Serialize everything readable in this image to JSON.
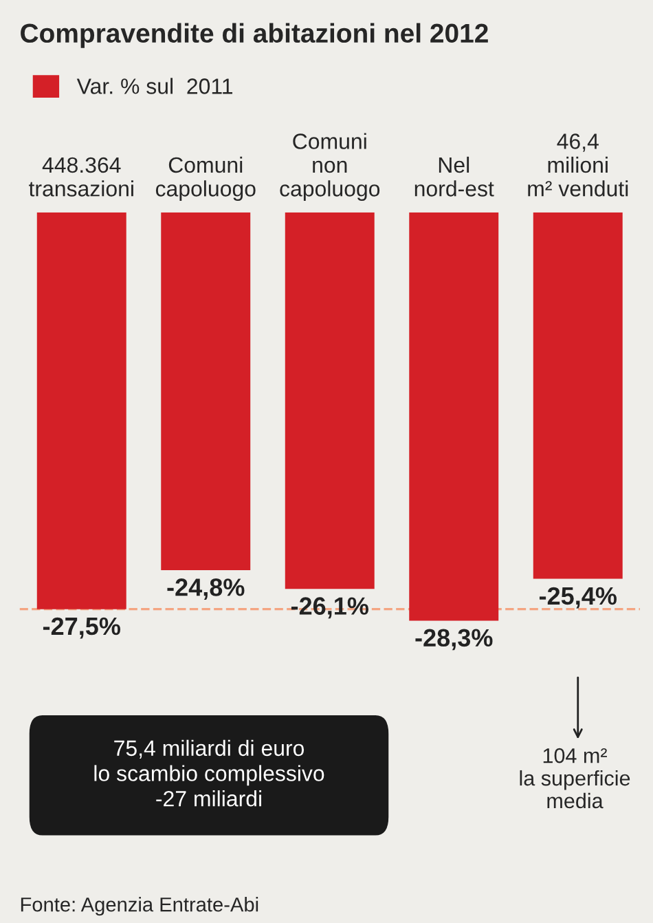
{
  "chart_data": {
    "type": "bar",
    "title": "Compravendite di abitazioni nel 2012",
    "categories": [
      "448.364\ntransazioni",
      "Comuni\ncapoluogo",
      "Comuni\nnon\ncapoluogo",
      "Nel\nnord-est",
      "46,4\nmilioni\nm² venduti"
    ],
    "series": [
      {
        "name": "Var. % sul  2011",
        "color": "#d42027",
        "values": [
          -27.5,
          -24.8,
          -26.1,
          -28.3,
          -25.4
        ],
        "value_labels": [
          "-27,5%",
          "-24,8%",
          "-26,1%",
          "-28,3%",
          "-25,4%"
        ]
      }
    ],
    "legend": "top left",
    "ref_lines": [
      {
        "axis": "y",
        "value": -27.5,
        "label": null,
        "color": "#f4a582",
        "line_style": "dashed"
      }
    ],
    "annotations": [
      "75,4 miliardi di euro\nlo scambio complessivo\n-27 miliardi",
      "104 m²\nla superficie\nmedia",
      "Fonte: Agenzia Entrate-Abi"
    ]
  }
}
